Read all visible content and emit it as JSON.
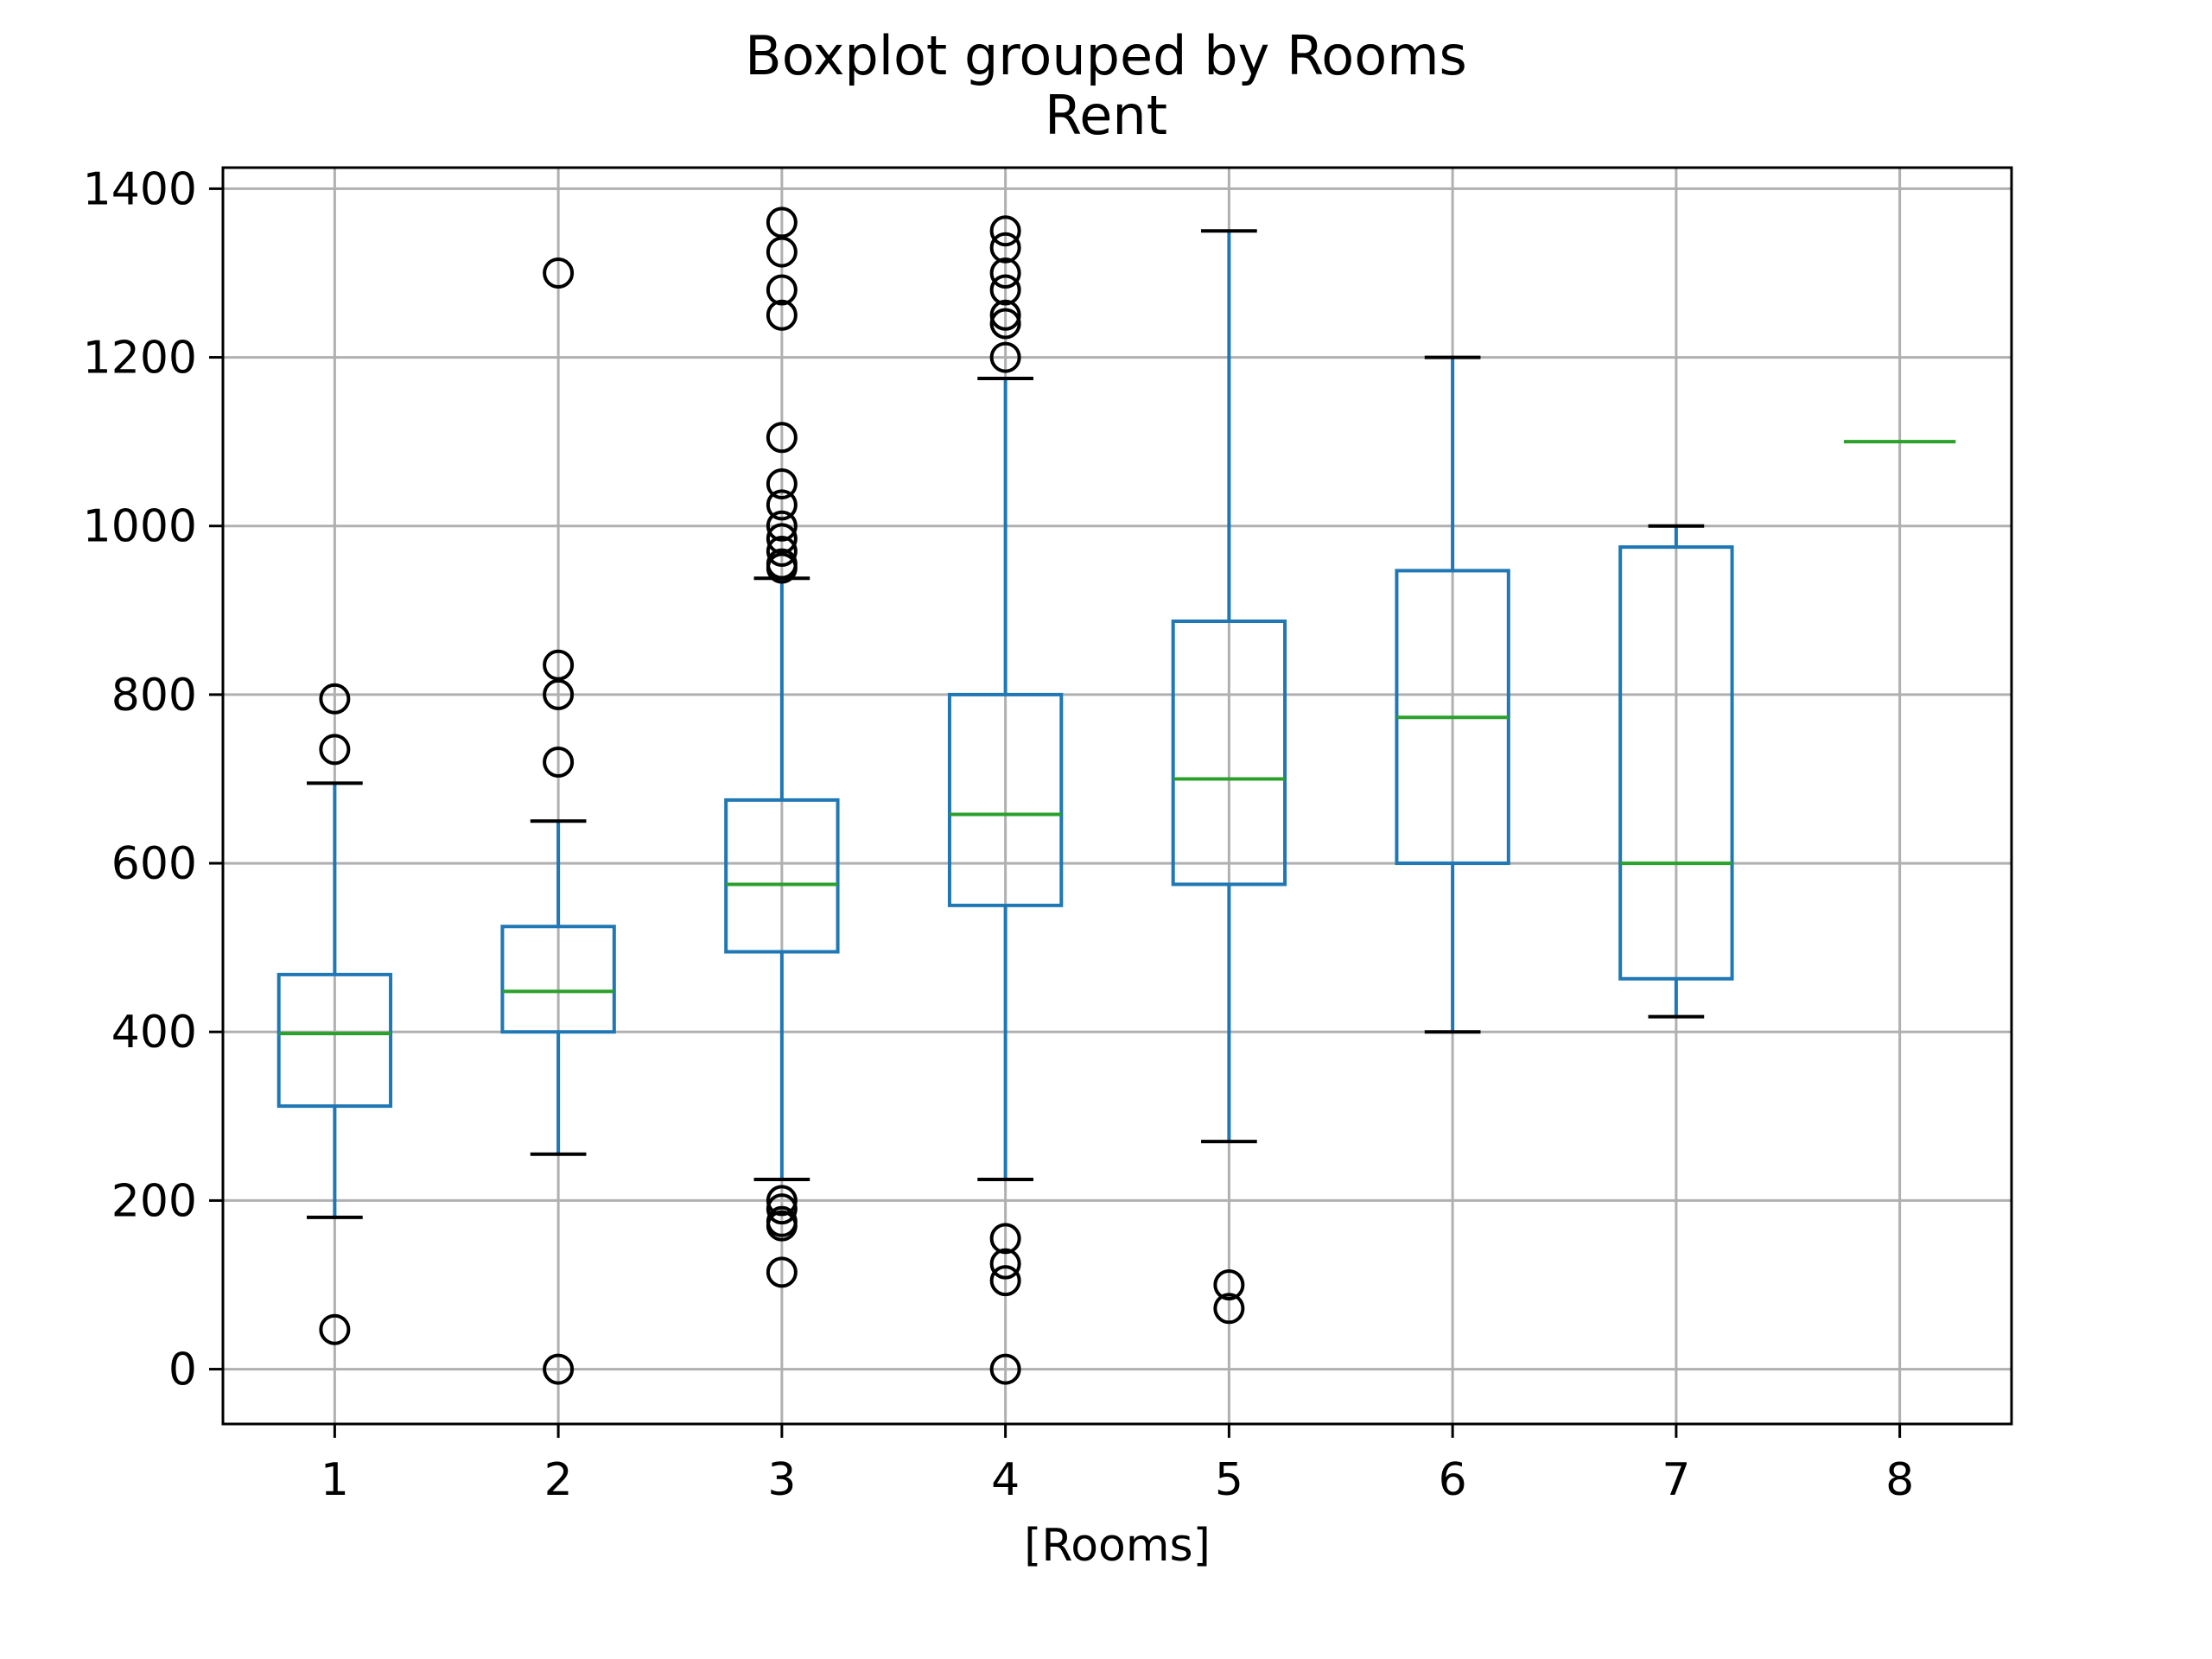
{
  "chart_data": {
    "type": "box",
    "title": "Boxplot grouped by Rooms",
    "subtitle": "Rent",
    "xlabel": "[Rooms]",
    "ylabel": "",
    "ylim": [
      -65,
      1425
    ],
    "y_ticks": [
      0,
      200,
      400,
      600,
      800,
      1000,
      1200,
      1400
    ],
    "grid": true,
    "colors": {
      "box": "#1f77b4",
      "median": "#2ca02c",
      "whisker_cap": "#000000",
      "flier": "#000000",
      "grid": "#b0b0b0"
    },
    "categories": [
      "1",
      "2",
      "3",
      "4",
      "5",
      "6",
      "7",
      "8"
    ],
    "boxes": [
      {
        "category": "1",
        "whislo": 180,
        "q1": 312,
        "med": 398,
        "q3": 468,
        "whishi": 695,
        "fliers": [
          795,
          735,
          47
        ]
      },
      {
        "category": "2",
        "whislo": 255,
        "q1": 400,
        "med": 448,
        "q3": 525,
        "whishi": 650,
        "fliers": [
          1300,
          835,
          800,
          720,
          0
        ]
      },
      {
        "category": "3",
        "whislo": 225,
        "q1": 495,
        "med": 575,
        "q3": 675,
        "whishi": 938,
        "fliers": [
          1360,
          1325,
          1280,
          1250,
          1105,
          1050,
          1025,
          1000,
          985,
          970,
          955,
          950,
          200,
          190,
          175,
          170,
          115
        ]
      },
      {
        "category": "4",
        "whislo": 225,
        "q1": 550,
        "med": 658,
        "q3": 800,
        "whishi": 1175,
        "fliers": [
          1350,
          1330,
          1300,
          1280,
          1250,
          1240,
          1200,
          155,
          125,
          105,
          0
        ]
      },
      {
        "category": "5",
        "whislo": 270,
        "q1": 575,
        "med": 700,
        "q3": 887,
        "whishi": 1350,
        "fliers": [
          100,
          72
        ]
      },
      {
        "category": "6",
        "whislo": 400,
        "q1": 600,
        "med": 773,
        "q3": 947,
        "whishi": 1200,
        "fliers": []
      },
      {
        "category": "7",
        "whislo": 418,
        "q1": 463,
        "med": 600,
        "q3": 975,
        "whishi": 1000,
        "fliers": []
      },
      {
        "category": "8",
        "whislo": 1100,
        "q1": 1100,
        "med": 1100,
        "q3": 1100,
        "whishi": 1100,
        "fliers": []
      }
    ]
  }
}
